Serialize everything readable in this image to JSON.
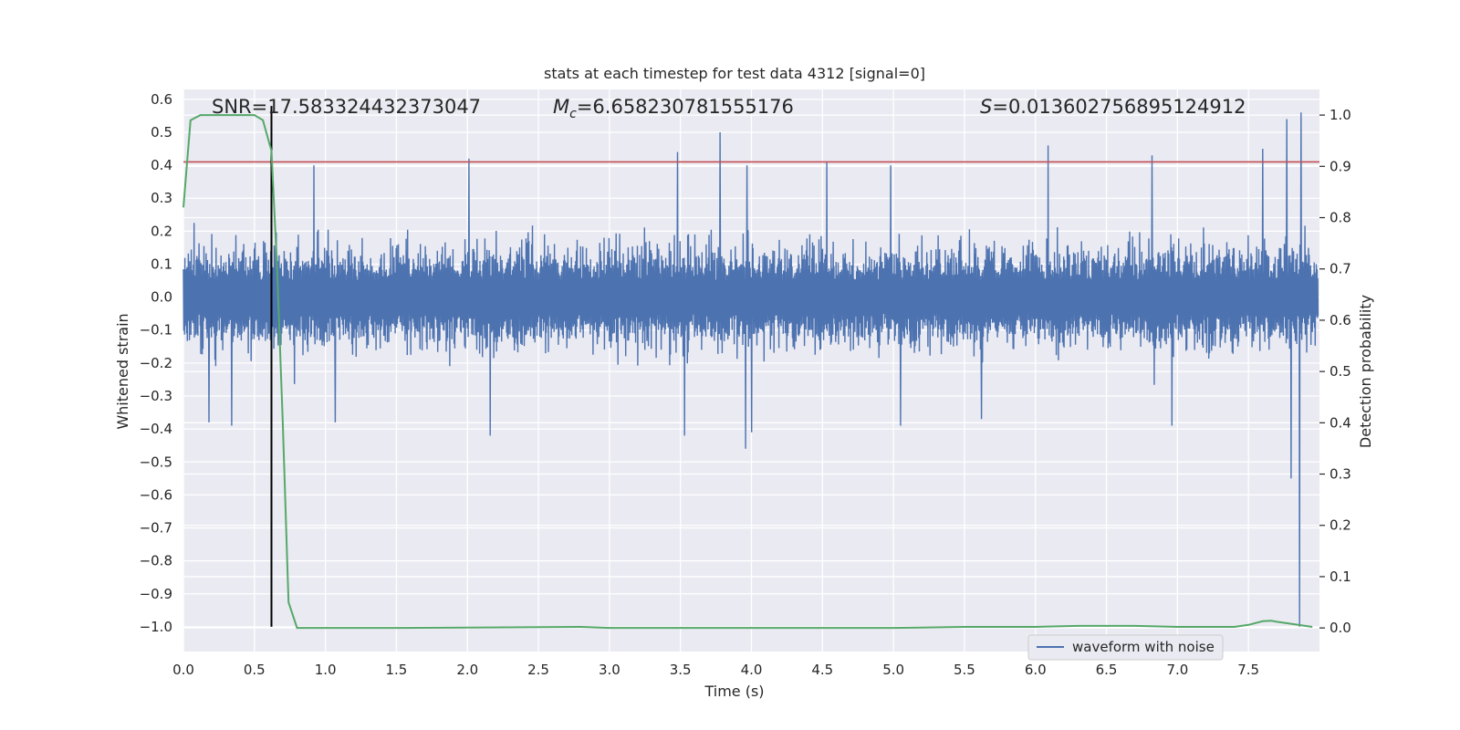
{
  "colors": {
    "background": "#eaeaf2",
    "grid": "#ffffff",
    "waveform": "#4c72b0",
    "probability": "#55a868",
    "threshold": "#c44e52",
    "marker": "#000000",
    "text": "#262626"
  },
  "chart_data": {
    "type": "line",
    "title": "stats at each timestep for test data 4312 [signal=0]",
    "xlabel": "Time (s)",
    "ylabel": "Whitened strain",
    "ylabel_right": "Detection probability",
    "xlim": [
      0.0,
      8.0
    ],
    "ylim": [
      -1.075,
      0.63
    ],
    "ylim_right": [
      -0.046,
      1.05
    ],
    "grid": true,
    "legend": {
      "placement": "lower-right",
      "entries": [
        "waveform with noise"
      ]
    },
    "x_ticks": [
      "0.0",
      "0.5",
      "1.0",
      "1.5",
      "2.0",
      "2.5",
      "3.0",
      "3.5",
      "4.0",
      "4.5",
      "5.0",
      "5.5",
      "6.0",
      "6.5",
      "7.0",
      "7.5"
    ],
    "y_ticks": [
      "0.6",
      "0.5",
      "0.4",
      "0.3",
      "0.2",
      "0.1",
      "0.0",
      "−0.1",
      "−0.2",
      "−0.3",
      "−0.4",
      "−0.5",
      "−0.6",
      "−0.7",
      "−0.8",
      "−0.9",
      "−1.0"
    ],
    "y_ticks_right": [
      "1.0",
      "0.9",
      "0.8",
      "0.7",
      "0.6",
      "0.5",
      "0.4",
      "0.3",
      "0.2",
      "0.1",
      "0.0"
    ],
    "annotations": {
      "snr": "SNR=17.583324432373047",
      "mc_prefix": "M",
      "mc_sub": "c",
      "mc_value": "=6.658230781555176",
      "s_prefix": "S",
      "s_value": "=0.013602756895124912"
    },
    "threshold_y": 0.41,
    "marker_x": 0.62,
    "marker_y_range": [
      -1.0,
      0.58
    ],
    "waveform": {
      "name": "waveform with noise",
      "x_range": [
        0.0,
        7.99
      ],
      "typical_amplitude": 0.22,
      "spikes": [
        [
          0.62,
          0.42
        ],
        [
          0.92,
          0.4
        ],
        [
          2.01,
          0.42
        ],
        [
          3.48,
          0.44
        ],
        [
          3.78,
          0.5
        ],
        [
          3.97,
          0.4
        ],
        [
          4.53,
          0.41
        ],
        [
          4.98,
          0.4
        ],
        [
          6.09,
          0.46
        ],
        [
          6.82,
          0.43
        ],
        [
          7.6,
          0.45
        ],
        [
          7.77,
          0.54
        ],
        [
          7.87,
          0.56
        ],
        [
          2.16,
          -0.42
        ],
        [
          3.53,
          -0.42
        ],
        [
          3.96,
          -0.46
        ],
        [
          5.05,
          -0.39
        ],
        [
          6.96,
          -0.39
        ],
        [
          0.34,
          -0.39
        ],
        [
          0.18,
          -0.38
        ],
        [
          7.8,
          -0.55
        ],
        [
          7.86,
          -1.0
        ],
        [
          1.07,
          -0.38
        ],
        [
          4.0,
          -0.41
        ],
        [
          5.62,
          -0.37
        ]
      ]
    },
    "probability": {
      "name": "detection probability",
      "x": [
        0.0,
        0.05,
        0.12,
        0.2,
        0.3,
        0.4,
        0.5,
        0.56,
        0.62,
        0.66,
        0.7,
        0.74,
        0.8,
        0.9,
        1.5,
        2.8,
        3.0,
        4.0,
        5.0,
        5.5,
        6.0,
        6.3,
        6.7,
        7.0,
        7.4,
        7.5,
        7.6,
        7.66,
        7.7,
        7.8,
        7.95
      ],
      "y": [
        0.82,
        0.99,
        1.0,
        1.0,
        1.0,
        1.0,
        1.0,
        0.99,
        0.93,
        0.7,
        0.4,
        0.05,
        0.0,
        0.0,
        0.0,
        0.002,
        0.0,
        0.0,
        0.0,
        0.002,
        0.002,
        0.004,
        0.004,
        0.002,
        0.002,
        0.006,
        0.013,
        0.014,
        0.012,
        0.008,
        0.002
      ]
    }
  }
}
